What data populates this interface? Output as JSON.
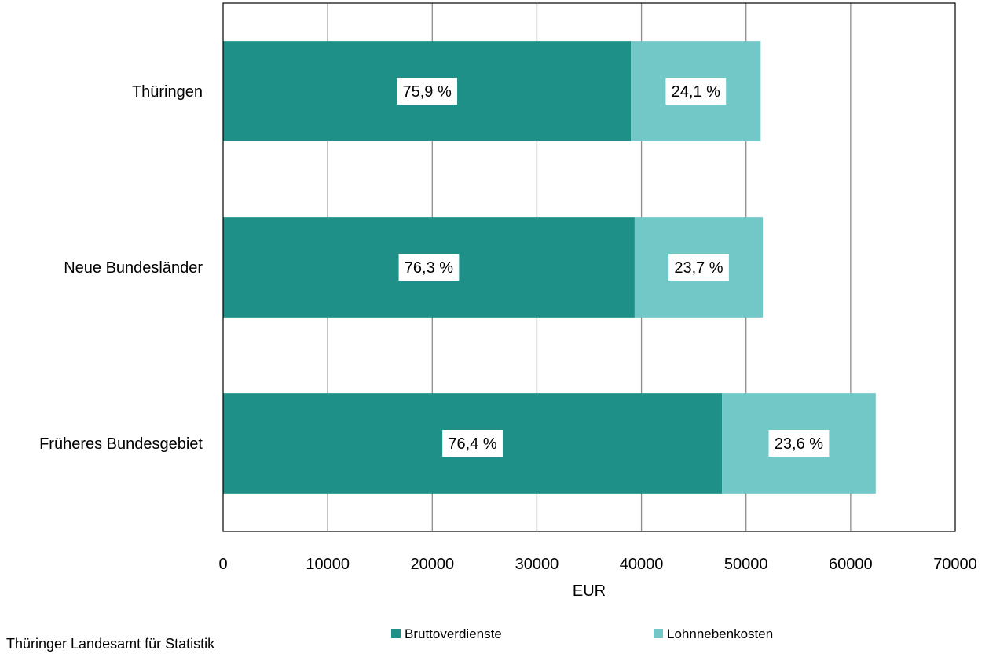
{
  "chart_data": {
    "type": "bar",
    "orientation": "horizontal",
    "stacked": true,
    "title": "",
    "xlabel": "EUR",
    "ylabel": "",
    "xlim": [
      0,
      70000
    ],
    "x_ticks": [
      0,
      10000,
      20000,
      30000,
      40000,
      50000,
      60000,
      70000
    ],
    "x_tick_labels": [
      "0",
      "10000",
      "20000",
      "30000",
      "40000",
      "50000",
      "60000",
      "70000"
    ],
    "grid": "vertical",
    "legend_position": "bottom",
    "categories": [
      "Thüringen",
      "Neue Bundesländer",
      "Früheres Bundesgebiet"
    ],
    "series": [
      {
        "name": "Bruttoverdienste",
        "color": "#1f9087",
        "values": [
          39000,
          39350,
          47700
        ],
        "labels": [
          "75,9 %",
          "76,3 %",
          "76,4 %"
        ]
      },
      {
        "name": "Lohnnebenkosten",
        "color": "#72c8c6",
        "values": [
          12400,
          12250,
          14700
        ],
        "labels": [
          "24,1 %",
          "23,7 %",
          "23,6 %"
        ]
      }
    ]
  },
  "footer": {
    "source": "Thüringer Landesamt für Statistik"
  }
}
